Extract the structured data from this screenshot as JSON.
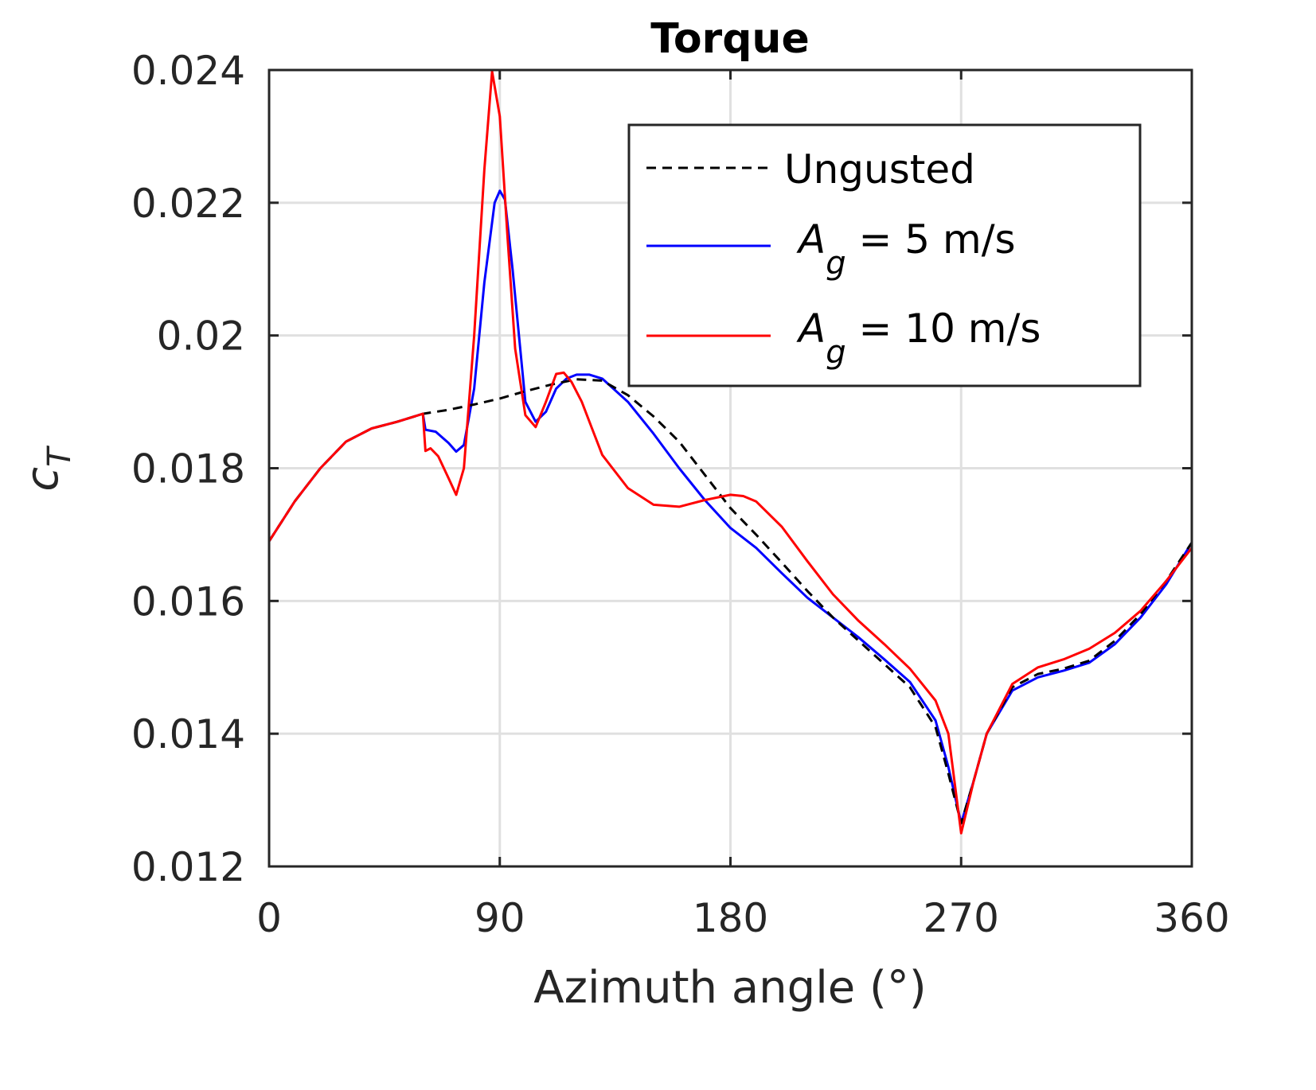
{
  "chart_data": {
    "type": "line",
    "title": "Torque",
    "xlabel": "Azimuth angle (°)",
    "ylabel": "c_T",
    "xlim": [
      0,
      360
    ],
    "ylim": [
      0.012,
      0.024
    ],
    "xticks": [
      0,
      90,
      180,
      270,
      360
    ],
    "xtick_labels": [
      "0",
      "90",
      "180",
      "270",
      "360"
    ],
    "yticks": [
      0.012,
      0.014,
      0.016,
      0.018,
      0.02,
      0.022,
      0.024
    ],
    "ytick_labels": [
      "0.012",
      "0.014",
      "0.016",
      "0.018",
      "0.02",
      "0.022",
      "0.024"
    ],
    "grid": true,
    "legend_position": "upper right",
    "series": [
      {
        "name": "Ungusted",
        "color": "#000000",
        "style": "dashed",
        "x": [
          0,
          10,
          20,
          30,
          40,
          50,
          60,
          70,
          80,
          90,
          100,
          110,
          120,
          130,
          140,
          150,
          160,
          170,
          180,
          190,
          200,
          210,
          220,
          230,
          240,
          250,
          260,
          265,
          270,
          275,
          280,
          290,
          300,
          310,
          320,
          330,
          340,
          350,
          360
        ],
        "y": [
          0.0169,
          0.0175,
          0.018,
          0.0184,
          0.0186,
          0.0187,
          0.01882,
          0.01888,
          0.01896,
          0.01905,
          0.01916,
          0.01926,
          0.01934,
          0.01932,
          0.0191,
          0.01878,
          0.0184,
          0.0179,
          0.0174,
          0.017,
          0.01658,
          0.01615,
          0.01575,
          0.0154,
          0.01505,
          0.0147,
          0.0141,
          0.0134,
          0.01265,
          0.0133,
          0.014,
          0.0147,
          0.0149,
          0.01498,
          0.0151,
          0.0154,
          0.0158,
          0.0163,
          0.01688
        ]
      },
      {
        "name": "A_g = 5 m/s",
        "color": "#0000ff",
        "style": "solid",
        "x": [
          0,
          10,
          20,
          30,
          40,
          50,
          60,
          61,
          65,
          70,
          73,
          76,
          80,
          84,
          88,
          90,
          92,
          95,
          100,
          104,
          108,
          112,
          116,
          120,
          125,
          130,
          140,
          150,
          160,
          170,
          180,
          190,
          200,
          210,
          220,
          230,
          240,
          250,
          260,
          265,
          270,
          275,
          280,
          290,
          300,
          310,
          320,
          330,
          340,
          350,
          360
        ],
        "y": [
          0.0169,
          0.0175,
          0.018,
          0.0184,
          0.0186,
          0.0187,
          0.01882,
          0.01858,
          0.01855,
          0.01838,
          0.01825,
          0.01835,
          0.0192,
          0.0208,
          0.022,
          0.02218,
          0.02205,
          0.021,
          0.019,
          0.0187,
          0.01885,
          0.0192,
          0.01935,
          0.01941,
          0.01941,
          0.01935,
          0.019,
          0.01852,
          0.018,
          0.01752,
          0.0171,
          0.0168,
          0.01642,
          0.01605,
          0.01575,
          0.01545,
          0.01512,
          0.01478,
          0.0142,
          0.0135,
          0.01265,
          0.0133,
          0.014,
          0.01465,
          0.01485,
          0.01495,
          0.01507,
          0.01535,
          0.01575,
          0.01625,
          0.01688
        ]
      },
      {
        "name": "A_g = 10 m/s",
        "color": "#ff0000",
        "style": "solid",
        "x": [
          0,
          10,
          20,
          30,
          40,
          50,
          60,
          61,
          63,
          66,
          70,
          73,
          76,
          80,
          84,
          87,
          90,
          93,
          96,
          100,
          104,
          108,
          112,
          115,
          118,
          122,
          126,
          130,
          140,
          150,
          160,
          170,
          180,
          185,
          190,
          200,
          210,
          220,
          230,
          240,
          250,
          260,
          265,
          270,
          275,
          280,
          290,
          300,
          310,
          320,
          330,
          340,
          350,
          360
        ],
        "y": [
          0.0169,
          0.0175,
          0.018,
          0.0184,
          0.0186,
          0.0187,
          0.01882,
          0.01826,
          0.0183,
          0.01818,
          0.01785,
          0.0176,
          0.018,
          0.02,
          0.0225,
          0.02398,
          0.0233,
          0.0215,
          0.0198,
          0.0188,
          0.01862,
          0.019,
          0.01942,
          0.01944,
          0.0193,
          0.019,
          0.0186,
          0.0182,
          0.0177,
          0.01745,
          0.01742,
          0.01752,
          0.0176,
          0.01758,
          0.0175,
          0.01712,
          0.0166,
          0.0161,
          0.0157,
          0.01535,
          0.01498,
          0.0145,
          0.014,
          0.0125,
          0.0133,
          0.014,
          0.01475,
          0.015,
          0.01512,
          0.01528,
          0.01552,
          0.01585,
          0.0163,
          0.0168
        ]
      }
    ]
  },
  "legend": {
    "items": [
      {
        "label": "Ungusted",
        "color": "#000000",
        "style": "dashed"
      },
      {
        "label_main": "A",
        "label_sub": "g",
        "label_rest": " = 5 m/s",
        "color": "#0000ff",
        "style": "solid"
      },
      {
        "label_main": "A",
        "label_sub": "g",
        "label_rest": " = 10 m/s",
        "color": "#ff0000",
        "style": "solid"
      }
    ]
  },
  "axis": {
    "ylabel_main": "c",
    "ylabel_sub": "T"
  }
}
